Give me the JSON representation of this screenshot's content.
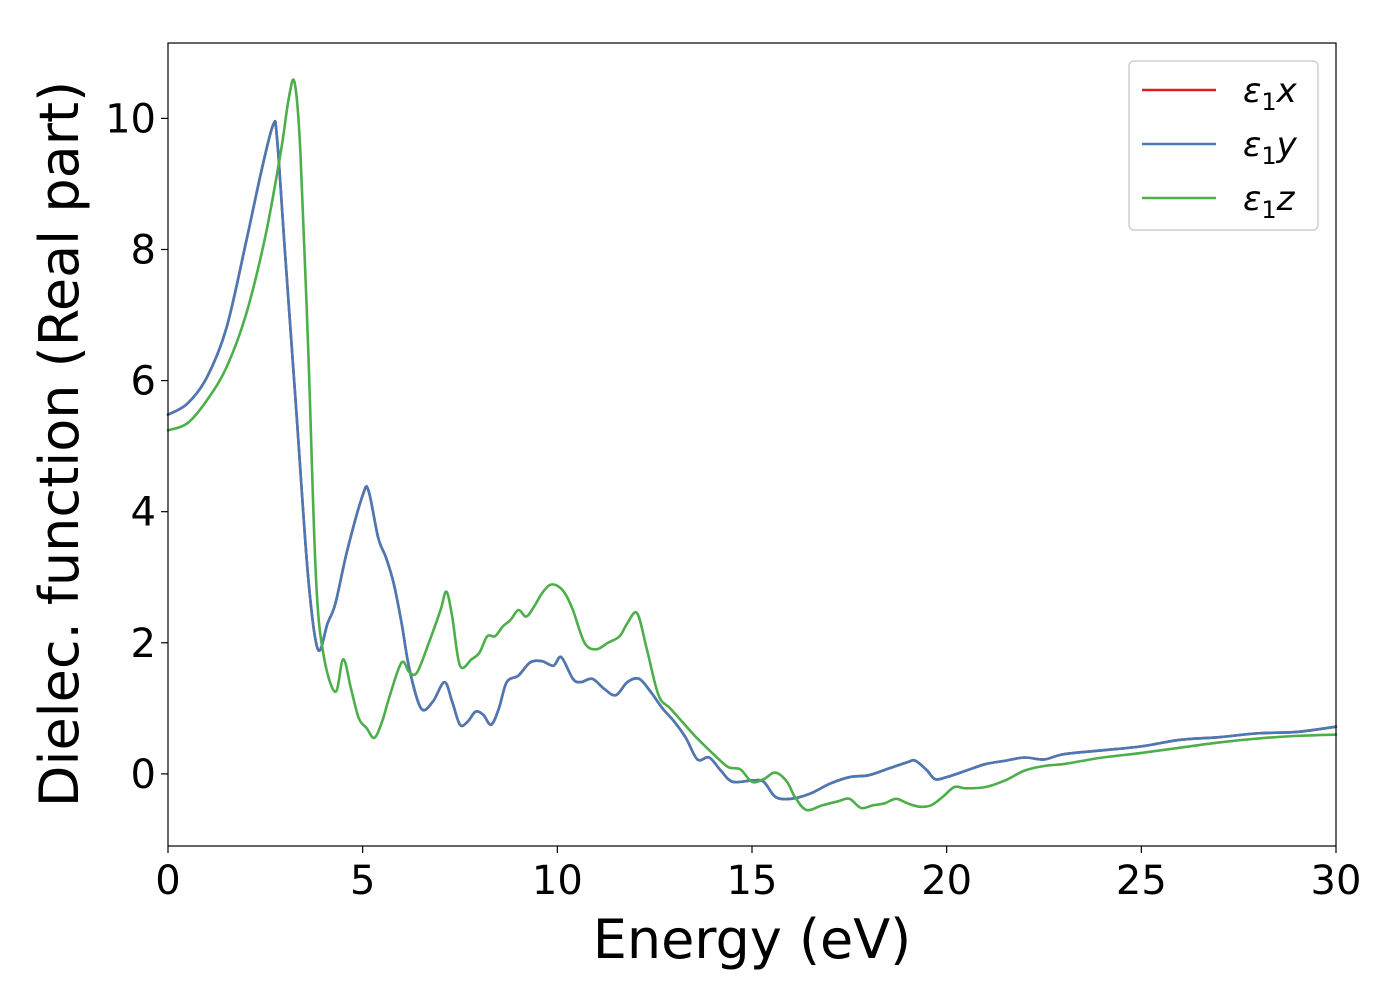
{
  "chart_data": {
    "type": "line",
    "title": "",
    "xlabel": "Energy (eV)",
    "ylabel": "Dielec. function (Real part)",
    "xlim": [
      0,
      30
    ],
    "ylim": [
      -1.1,
      11.15
    ],
    "xticks": [
      0,
      5,
      10,
      15,
      20,
      25,
      30
    ],
    "yticks": [
      0,
      2,
      4,
      6,
      8,
      10
    ],
    "grid": false,
    "legend_position": "top-right",
    "legend_parts": [
      {
        "base": "ε",
        "sub": "1",
        "tail": "x"
      },
      {
        "base": "ε",
        "sub": "1",
        "tail": "y"
      },
      {
        "base": "ε",
        "sub": "1",
        "tail": "z"
      }
    ],
    "series": [
      {
        "name": "ε1x",
        "color": "#e41a1c",
        "x": [
          0,
          0.5,
          1.0,
          1.5,
          2.0,
          2.4,
          2.7,
          2.8,
          3.0,
          3.3,
          3.6,
          3.85,
          4.1,
          4.3,
          4.6,
          5.0,
          5.15,
          5.4,
          5.6,
          5.8,
          6.0,
          6.2,
          6.5,
          6.8,
          7.1,
          7.3,
          7.5,
          7.7,
          7.9,
          8.1,
          8.3,
          8.5,
          8.7,
          9.0,
          9.3,
          9.6,
          9.9,
          10.1,
          10.4,
          10.6,
          10.9,
          11.2,
          11.5,
          11.8,
          12.1,
          12.4,
          12.7,
          13.0,
          13.3,
          13.6,
          13.9,
          14.2,
          14.5,
          15.0,
          15.3,
          15.6,
          16.0,
          16.5,
          17.0,
          17.5,
          18.0,
          18.5,
          19.0,
          19.2,
          19.5,
          19.7,
          20.0,
          20.5,
          21.0,
          21.5,
          22.0,
          22.5,
          23.0,
          24.0,
          25.0,
          26.0,
          27.0,
          28.0,
          29.0,
          30.0
        ],
        "y": [
          5.48,
          5.65,
          6.05,
          6.8,
          8.1,
          9.2,
          9.9,
          9.7,
          8.0,
          5.5,
          3.0,
          1.9,
          2.3,
          2.6,
          3.4,
          4.25,
          4.32,
          3.6,
          3.3,
          2.9,
          2.3,
          1.6,
          1.0,
          1.1,
          1.4,
          1.1,
          0.75,
          0.8,
          0.95,
          0.9,
          0.75,
          1.0,
          1.4,
          1.5,
          1.7,
          1.72,
          1.65,
          1.78,
          1.45,
          1.4,
          1.45,
          1.3,
          1.2,
          1.4,
          1.45,
          1.25,
          1.0,
          0.8,
          0.55,
          0.22,
          0.25,
          0.05,
          -0.12,
          -0.1,
          -0.12,
          -0.35,
          -0.38,
          -0.3,
          -0.15,
          -0.05,
          -0.02,
          0.08,
          0.18,
          0.2,
          0.05,
          -0.08,
          -0.05,
          0.05,
          0.15,
          0.2,
          0.25,
          0.22,
          0.3,
          0.36,
          0.42,
          0.52,
          0.56,
          0.62,
          0.64,
          0.72
        ]
      },
      {
        "name": "ε1y",
        "color": "#4a7ab5",
        "x": [
          0,
          0.5,
          1.0,
          1.5,
          2.0,
          2.4,
          2.7,
          2.8,
          3.0,
          3.3,
          3.6,
          3.85,
          4.1,
          4.3,
          4.6,
          5.0,
          5.15,
          5.4,
          5.6,
          5.8,
          6.0,
          6.2,
          6.5,
          6.8,
          7.1,
          7.3,
          7.5,
          7.7,
          7.9,
          8.1,
          8.3,
          8.5,
          8.7,
          9.0,
          9.3,
          9.6,
          9.9,
          10.1,
          10.4,
          10.6,
          10.9,
          11.2,
          11.5,
          11.8,
          12.1,
          12.4,
          12.7,
          13.0,
          13.3,
          13.6,
          13.9,
          14.2,
          14.5,
          15.0,
          15.3,
          15.6,
          16.0,
          16.5,
          17.0,
          17.5,
          18.0,
          18.5,
          19.0,
          19.2,
          19.5,
          19.7,
          20.0,
          20.5,
          21.0,
          21.5,
          22.0,
          22.5,
          23.0,
          24.0,
          25.0,
          26.0,
          27.0,
          28.0,
          29.0,
          30.0
        ],
        "y": [
          5.48,
          5.65,
          6.05,
          6.8,
          8.1,
          9.2,
          9.9,
          9.7,
          8.0,
          5.5,
          3.0,
          1.9,
          2.3,
          2.6,
          3.4,
          4.25,
          4.32,
          3.6,
          3.3,
          2.9,
          2.3,
          1.6,
          1.0,
          1.1,
          1.4,
          1.1,
          0.75,
          0.8,
          0.95,
          0.9,
          0.75,
          1.0,
          1.4,
          1.5,
          1.7,
          1.72,
          1.65,
          1.78,
          1.45,
          1.4,
          1.45,
          1.3,
          1.2,
          1.4,
          1.45,
          1.25,
          1.0,
          0.8,
          0.55,
          0.22,
          0.25,
          0.05,
          -0.12,
          -0.1,
          -0.12,
          -0.35,
          -0.38,
          -0.3,
          -0.15,
          -0.05,
          -0.02,
          0.08,
          0.18,
          0.2,
          0.05,
          -0.08,
          -0.05,
          0.05,
          0.15,
          0.2,
          0.25,
          0.22,
          0.3,
          0.36,
          0.42,
          0.52,
          0.56,
          0.62,
          0.64,
          0.72
        ]
      },
      {
        "name": "ε1z",
        "color": "#4daf4a",
        "x": [
          0,
          0.5,
          1.0,
          1.5,
          2.0,
          2.5,
          2.9,
          3.1,
          3.25,
          3.4,
          3.6,
          3.8,
          4.0,
          4.3,
          4.5,
          4.7,
          4.9,
          5.1,
          5.3,
          5.5,
          5.7,
          6.0,
          6.2,
          6.4,
          6.7,
          7.0,
          7.15,
          7.3,
          7.5,
          7.8,
          8.0,
          8.2,
          8.4,
          8.6,
          8.8,
          9.0,
          9.2,
          9.4,
          9.6,
          9.8,
          10.0,
          10.2,
          10.4,
          10.7,
          11.0,
          11.3,
          11.6,
          11.8,
          12.05,
          12.3,
          12.6,
          12.9,
          13.2,
          13.5,
          13.8,
          14.1,
          14.4,
          14.7,
          15.0,
          15.3,
          15.6,
          15.9,
          16.1,
          16.4,
          16.8,
          17.2,
          17.5,
          17.8,
          18.1,
          18.4,
          18.7,
          19.0,
          19.3,
          19.6,
          19.9,
          20.2,
          20.5,
          21.0,
          21.5,
          22.0,
          22.5,
          23.0,
          23.5,
          24.0,
          25.0,
          26.0,
          27.0,
          28.0,
          29.0,
          30.0
        ],
        "y": [
          5.24,
          5.35,
          5.7,
          6.2,
          7.0,
          8.2,
          9.5,
          10.3,
          10.55,
          9.5,
          6.5,
          3.0,
          1.8,
          1.25,
          1.75,
          1.3,
          0.85,
          0.7,
          0.55,
          0.8,
          1.2,
          1.7,
          1.55,
          1.55,
          2.0,
          2.5,
          2.78,
          2.4,
          1.65,
          1.75,
          1.85,
          2.1,
          2.1,
          2.25,
          2.35,
          2.5,
          2.4,
          2.55,
          2.75,
          2.88,
          2.87,
          2.75,
          2.5,
          2.0,
          1.9,
          2.0,
          2.1,
          2.3,
          2.45,
          1.9,
          1.2,
          1.0,
          0.8,
          0.6,
          0.42,
          0.25,
          0.1,
          0.07,
          -0.12,
          -0.08,
          0.02,
          -0.12,
          -0.35,
          -0.55,
          -0.48,
          -0.42,
          -0.38,
          -0.52,
          -0.48,
          -0.45,
          -0.38,
          -0.45,
          -0.5,
          -0.48,
          -0.35,
          -0.2,
          -0.22,
          -0.2,
          -0.1,
          0.05,
          0.12,
          0.15,
          0.2,
          0.25,
          0.32,
          0.4,
          0.48,
          0.54,
          0.58,
          0.6
        ]
      }
    ]
  }
}
